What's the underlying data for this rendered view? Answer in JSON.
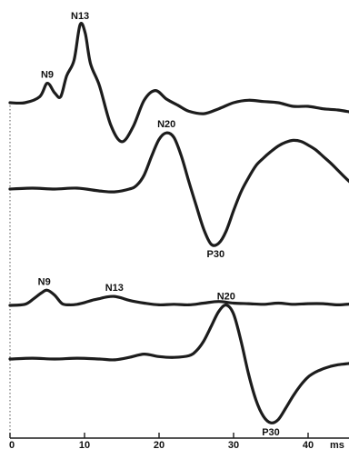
{
  "chart_data": {
    "type": "line",
    "xlabel": "",
    "ylabel": "",
    "xlim": [
      0,
      47
    ],
    "x_unit_label": "ms",
    "x_ticks": [
      0,
      10,
      20,
      30,
      40
    ],
    "x_tick_labels": [
      "0",
      "10",
      "20",
      "30",
      "40"
    ],
    "grid": false,
    "legend": "none",
    "series": [
      {
        "x": [
          0,
          2,
          4,
          5,
          6,
          6.8,
          7.6,
          8.6,
          9.4,
          10.1,
          10.8,
          12,
          13.5,
          15,
          16.5,
          18,
          19.5,
          21,
          22.5,
          24,
          26,
          28,
          30,
          32,
          34,
          36,
          38,
          40,
          42,
          44,
          46,
          47
        ],
        "y": [
          0,
          0,
          0.5,
          1.6,
          0.8,
          0.5,
          2.2,
          3.5,
          6.4,
          5.7,
          3.2,
          1.4,
          -1.8,
          -3.2,
          -2.0,
          0.2,
          1.0,
          0.3,
          -0.2,
          -0.7,
          -0.9,
          -0.5,
          0.0,
          0.2,
          0.1,
          0.0,
          -0.3,
          -0.3,
          -0.5,
          -0.6,
          -0.8,
          -0.9
        ],
        "peaks": [
          {
            "label": "N9",
            "x": 5,
            "y": 1.6,
            "pos": "above"
          },
          {
            "label": "N13",
            "x": 9.4,
            "y": 6.4,
            "pos": "above"
          }
        ]
      },
      {
        "x": [
          0,
          3,
          6,
          9,
          12,
          14,
          16,
          17,
          18,
          19,
          20,
          21,
          22,
          23,
          24,
          25,
          26,
          27,
          28,
          29,
          30,
          31,
          32,
          33,
          34,
          35,
          36,
          37,
          38,
          39,
          40,
          41,
          42,
          43,
          44,
          45,
          46,
          47
        ],
        "y": [
          0,
          0.1,
          0,
          0.1,
          -0.2,
          -0.3,
          0.0,
          0.4,
          1.5,
          3.5,
          5.3,
          6.0,
          5.5,
          3.5,
          0.8,
          -1.8,
          -4.3,
          -5.9,
          -5.8,
          -4.5,
          -2.3,
          -0.3,
          1.2,
          2.5,
          3.3,
          4.0,
          4.6,
          5.0,
          5.2,
          5.1,
          4.7,
          4.2,
          3.5,
          2.8,
          2.0,
          1.2,
          0.5,
          0.2
        ],
        "peaks": [
          {
            "label": "N20",
            "x": 21,
            "y": 6.0,
            "pos": "above"
          },
          {
            "label": "P30",
            "x": 27.6,
            "y": -5.9,
            "pos": "below"
          }
        ]
      },
      {
        "x": [
          0,
          2,
          3.2,
          4.2,
          5,
          6,
          7,
          8,
          9,
          10,
          11,
          12,
          13,
          14,
          15,
          16,
          18,
          20,
          22,
          24,
          26,
          28,
          30,
          32,
          34,
          36,
          38,
          40,
          42,
          44,
          46,
          47
        ],
        "y": [
          0,
          0.2,
          1.2,
          2.2,
          2.7,
          1.8,
          0.3,
          0.1,
          0.2,
          0.5,
          0.9,
          1.2,
          1.5,
          1.6,
          1.3,
          0.9,
          0.4,
          0.1,
          0.2,
          0.1,
          0.4,
          0.7,
          0.4,
          0.3,
          0.2,
          0.4,
          0.2,
          0.3,
          0.3,
          0.1,
          0.3,
          0.5
        ],
        "peaks": [
          {
            "label": "N9",
            "x": 4.6,
            "y": 2.7,
            "pos": "above"
          },
          {
            "label": "N13",
            "x": 14,
            "y": 1.6,
            "pos": "above"
          }
        ]
      },
      {
        "x": [
          0,
          3,
          6,
          9,
          12,
          14,
          16,
          18,
          20,
          22,
          24,
          25,
          26,
          27,
          28,
          29,
          30,
          31,
          32,
          33,
          34,
          35,
          36,
          37,
          38,
          39,
          40,
          41,
          42,
          43,
          44,
          45,
          46,
          47
        ],
        "y": [
          0,
          0.1,
          0.0,
          0.1,
          0.0,
          -0.1,
          0.2,
          0.6,
          0.3,
          0.2,
          0.4,
          1.0,
          2.2,
          4.0,
          5.8,
          6.6,
          5.5,
          2.2,
          -1.8,
          -5.0,
          -7.0,
          -7.8,
          -7.4,
          -6.0,
          -4.5,
          -3.2,
          -2.2,
          -1.6,
          -1.2,
          -0.9,
          -0.7,
          -0.6,
          -0.5,
          -0.5
        ],
        "peaks": [
          {
            "label": "N20",
            "x": 29,
            "y": 6.6,
            "pos": "above"
          },
          {
            "label": "P30",
            "x": 35,
            "y": -7.8,
            "pos": "below"
          }
        ]
      }
    ]
  }
}
